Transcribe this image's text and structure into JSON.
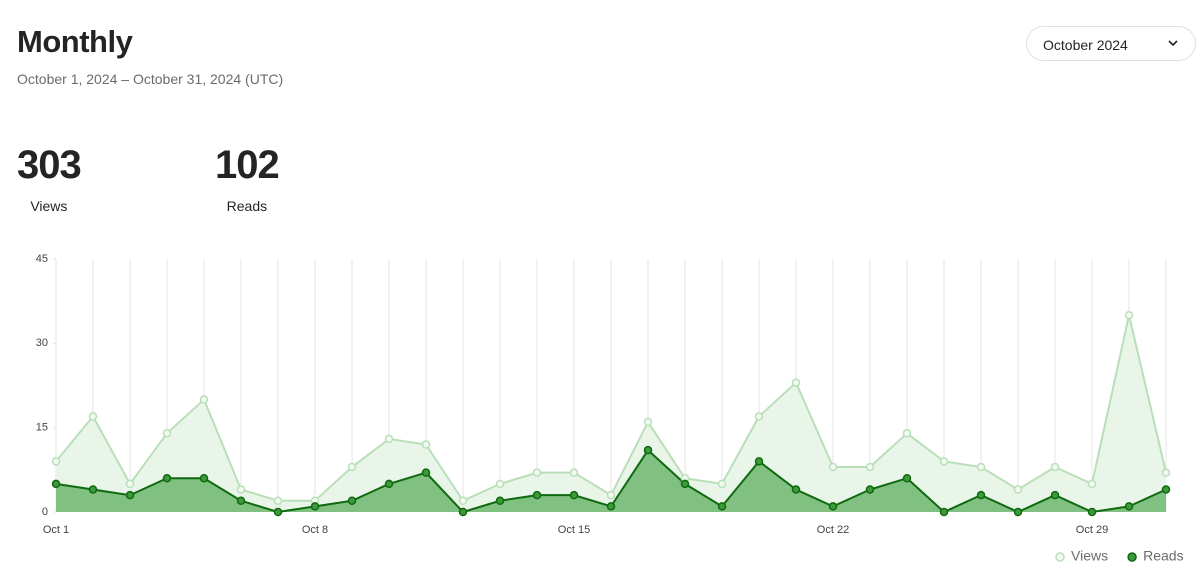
{
  "header": {
    "title": "Monthly",
    "subtitle": "October 1, 2024 – October 31, 2024 (UTC)",
    "dropdown": "October 2024"
  },
  "stats": [
    {
      "value": 303,
      "label": "Views"
    },
    {
      "value": 102,
      "label": "Reads"
    }
  ],
  "chart_data": {
    "type": "area",
    "categories": [
      "Oct 1",
      null,
      null,
      null,
      null,
      null,
      null,
      "Oct 8",
      null,
      null,
      null,
      null,
      null,
      null,
      "Oct 15",
      null,
      null,
      null,
      null,
      null,
      null,
      "Oct 22",
      null,
      null,
      null,
      null,
      null,
      null,
      "Oct 29",
      null,
      null
    ],
    "series": [
      {
        "name": "Views",
        "color": "#b9dfb9",
        "fill": "#eaf5ea",
        "values": [
          9,
          17,
          5,
          14,
          20,
          4,
          2,
          2,
          8,
          13,
          12,
          2,
          5,
          7,
          7,
          3,
          16,
          6,
          5,
          17,
          23,
          8,
          8,
          14,
          9,
          8,
          4,
          8,
          5,
          35,
          7
        ]
      },
      {
        "name": "Reads",
        "color": "#0f6a0f",
        "fill": "#80c080",
        "values": [
          5,
          4,
          3,
          6,
          6,
          2,
          0,
          1,
          2,
          5,
          7,
          0,
          2,
          3,
          3,
          1,
          11,
          5,
          1,
          9,
          4,
          1,
          4,
          6,
          0,
          3,
          0,
          3,
          0,
          1,
          4
        ]
      }
    ],
    "ylim": [
      0,
      45
    ],
    "yticks": [
      0,
      15,
      30,
      45
    ],
    "grid": true,
    "legend": "bottom-right"
  }
}
